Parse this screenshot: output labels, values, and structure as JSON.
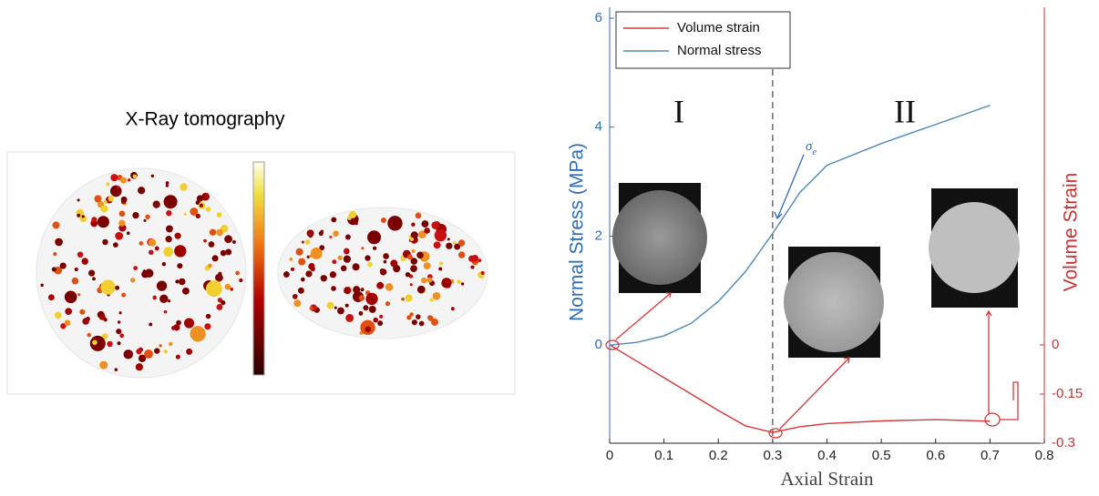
{
  "left_panel": {
    "title": "X-Ray tomography"
  },
  "chart_data": {
    "type": "line",
    "x_label": "Axial Strain",
    "y_label": "Normal Stress (MPa)",
    "y2_label": "Volume Strain",
    "x": [
      0,
      0.05,
      0.1,
      0.15,
      0.2,
      0.25,
      0.3,
      0.35,
      0.4,
      0.5,
      0.6,
      0.7
    ],
    "series": [
      {
        "name": "Volume strain",
        "color": "#d43a3a",
        "axis": "y2",
        "values": [
          0,
          -0.05,
          -0.1,
          -0.15,
          -0.2,
          -0.247,
          -0.267,
          -0.25,
          -0.24,
          -0.232,
          -0.228,
          -0.233
        ]
      },
      {
        "name": "Normal stress",
        "color": "#4f8ab8",
        "values": [
          0,
          0.05,
          0.17,
          0.4,
          0.8,
          1.35,
          2.05,
          2.8,
          3.3,
          3.7,
          4.05,
          4.4
        ]
      }
    ],
    "xlim": [
      0,
      0.8
    ],
    "xticks": [
      0,
      0.1,
      0.2,
      0.3,
      0.4,
      0.5,
      0.6,
      0.7,
      0.8
    ],
    "ylim": [
      -1.8,
      6.2
    ],
    "yticks": [
      0,
      2,
      4,
      6
    ],
    "y2lim": [
      -0.3,
      1.03
    ],
    "y2ticks": [
      0,
      -0.15,
      -0.3
    ],
    "vline": 0.3,
    "region_labels": [
      "I",
      "II"
    ],
    "sigma_label": {
      "symbol": "σ",
      "subscript": "e"
    },
    "legend": "upper left"
  }
}
